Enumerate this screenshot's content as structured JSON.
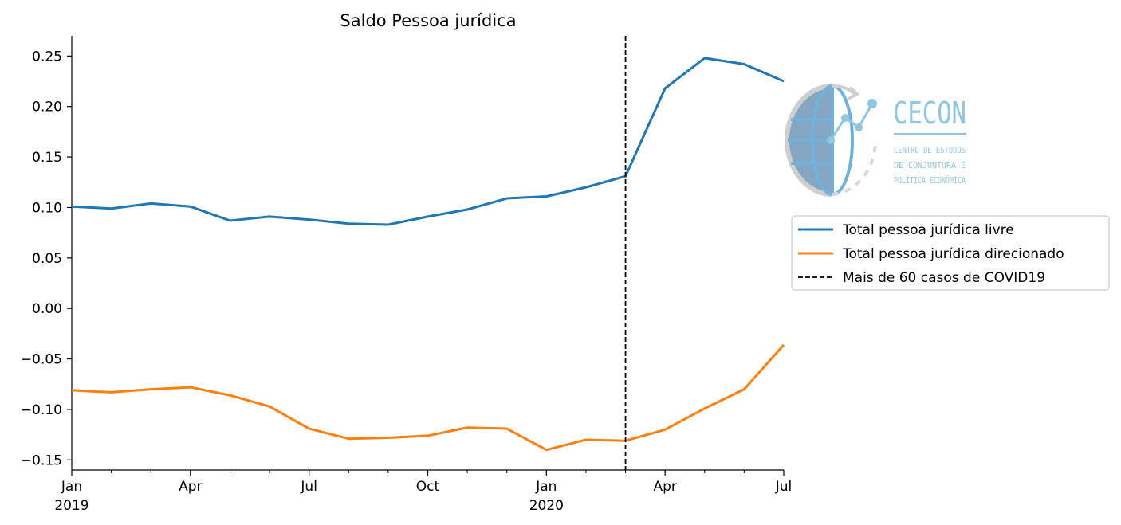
{
  "chart_data": {
    "type": "line",
    "title": "Saldo Pessoa jurídica",
    "xlabel": "",
    "ylabel": "",
    "x": [
      "2019-01",
      "2019-02",
      "2019-03",
      "2019-04",
      "2019-05",
      "2019-06",
      "2019-07",
      "2019-08",
      "2019-09",
      "2019-10",
      "2019-11",
      "2019-12",
      "2020-01",
      "2020-02",
      "2020-03",
      "2020-04",
      "2020-05",
      "2020-06",
      "2020-07"
    ],
    "xlim": [
      "2019-01",
      "2020-07"
    ],
    "ylim": [
      -0.16,
      0.27
    ],
    "x_ticks": [
      {
        "x": "2019-01",
        "label": "Jan",
        "sublabel": "2019"
      },
      {
        "x": "2019-04",
        "label": "Apr",
        "sublabel": ""
      },
      {
        "x": "2019-07",
        "label": "Jul",
        "sublabel": ""
      },
      {
        "x": "2019-10",
        "label": "Oct",
        "sublabel": ""
      },
      {
        "x": "2020-01",
        "label": "Jan",
        "sublabel": "2020"
      },
      {
        "x": "2020-04",
        "label": "Apr",
        "sublabel": ""
      },
      {
        "x": "2020-07",
        "label": "Jul",
        "sublabel": ""
      }
    ],
    "y_ticks": [
      {
        "value": 0.25,
        "label": "0.25"
      },
      {
        "value": 0.2,
        "label": "0.20"
      },
      {
        "value": 0.15,
        "label": "0.15"
      },
      {
        "value": 0.1,
        "label": "0.10"
      },
      {
        "value": 0.05,
        "label": "0.05"
      },
      {
        "value": 0.0,
        "label": "0.00"
      },
      {
        "value": -0.05,
        "label": "−0.05"
      },
      {
        "value": -0.1,
        "label": "−0.10"
      },
      {
        "value": -0.15,
        "label": "−0.15"
      }
    ],
    "series": [
      {
        "name": "Total pessoa jurídica livre",
        "color": "#1f77b4",
        "values": [
          0.101,
          0.099,
          0.104,
          0.101,
          0.087,
          0.091,
          0.088,
          0.084,
          0.083,
          0.091,
          0.098,
          0.109,
          0.111,
          0.12,
          0.131,
          0.218,
          0.248,
          0.242,
          0.225
        ]
      },
      {
        "name": "Total pessoa jurídica direcionado",
        "color": "#ff7f0e",
        "values": [
          -0.081,
          -0.083,
          -0.08,
          -0.078,
          -0.086,
          -0.097,
          -0.119,
          -0.129,
          -0.128,
          -0.126,
          -0.118,
          -0.119,
          -0.14,
          -0.13,
          -0.131,
          -0.12,
          -0.099,
          -0.08,
          -0.036
        ]
      }
    ],
    "annotations": [
      {
        "type": "vline",
        "x": "2020-03",
        "name": "Mais de 60 casos de COVID19",
        "color": "#000000",
        "style": "dashed"
      }
    ],
    "legend_position": "right",
    "grid": false
  },
  "logo": {
    "name": "CECON",
    "lines": [
      "CENTRO DE ESTUDOS",
      "DE CONJUNTURA E",
      "POLÍTICA ECONÔMICA"
    ]
  }
}
